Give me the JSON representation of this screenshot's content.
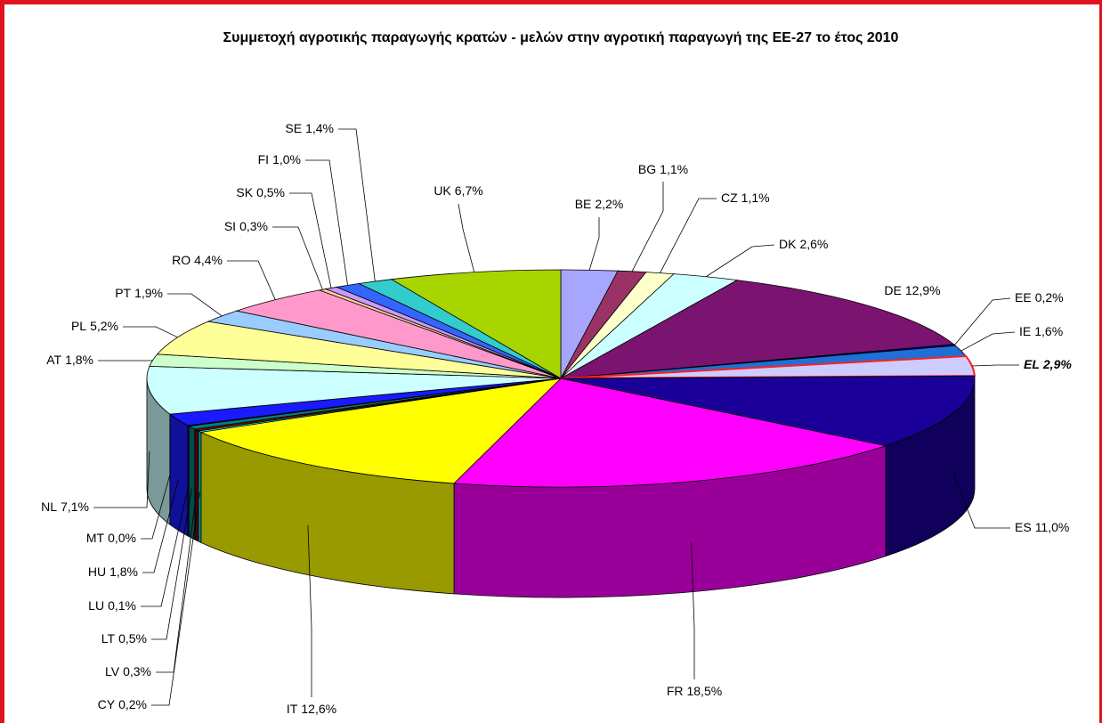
{
  "chart_data": {
    "type": "pie3d",
    "title": "Συμμετοχή αγροτικής παραγωγής κρατών - μελών στην αγροτική παραγωγή της ΕΕ-27 το έτος 2010",
    "categories": [
      "BE",
      "BG",
      "CZ",
      "DK",
      "DE",
      "EE",
      "IE",
      "EL",
      "ES",
      "FR",
      "IT",
      "CY",
      "LV",
      "LT",
      "LU",
      "HU",
      "MT",
      "NL",
      "AT",
      "PL",
      "PT",
      "RO",
      "SI",
      "SK",
      "FI",
      "SE",
      "UK"
    ],
    "values": [
      2.2,
      1.1,
      1.1,
      2.6,
      12.9,
      0.2,
      1.6,
      2.9,
      11.0,
      18.5,
      12.6,
      0.2,
      0.3,
      0.5,
      0.1,
      1.8,
      0.0,
      7.1,
      1.8,
      5.2,
      1.9,
      4.4,
      0.3,
      0.5,
      1.0,
      1.4,
      6.7
    ],
    "value_labels": [
      "2,2%",
      "1,1%",
      "1,1%",
      "2,6%",
      "12,9%",
      "0,2%",
      "1,6%",
      "2,9%",
      "11,0%",
      "18,5%",
      "12,6%",
      "0,2%",
      "0,3%",
      "0,5%",
      "0,1%",
      "1,8%",
      "0,0%",
      "7,1%",
      "1,8%",
      "5,2%",
      "1,9%",
      "4,4%",
      "0,3%",
      "0,5%",
      "1,0%",
      "1,4%",
      "6,7%"
    ],
    "colors": [
      "#a6a6ff",
      "#993366",
      "#ffffcc",
      "#ccffff",
      "#7a1470",
      "#0000cc",
      "#1f6fd6",
      "#ccccff",
      "#1a0099",
      "#ff00ff",
      "#ffff00",
      "#00ffff",
      "#800000",
      "#008080",
      "#0000ff",
      "#1a1aff",
      "#000080",
      "#ccffff",
      "#ccffcc",
      "#ffff99",
      "#99ccff",
      "#ff99cc",
      "#ffcc99",
      "#cc99ff",
      "#3366ff",
      "#33cccc",
      "#a8d400"
    ],
    "highlight": "EL"
  }
}
